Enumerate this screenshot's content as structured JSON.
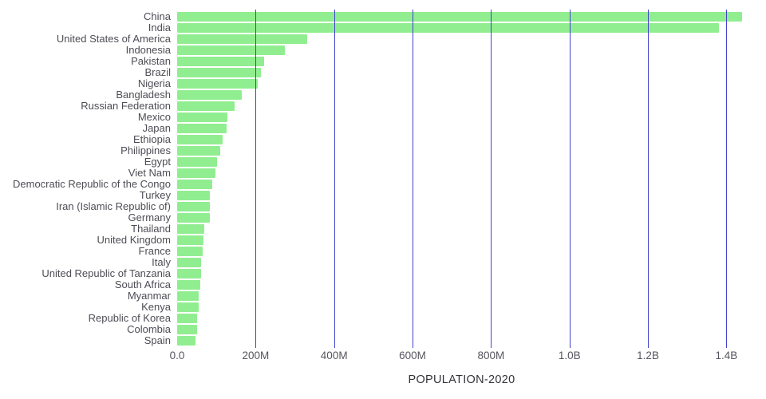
{
  "chart_data": {
    "type": "bar",
    "orientation": "horizontal",
    "title": "",
    "xlabel": "POPULATION-2020",
    "ylabel": "",
    "value_unit": "millions",
    "xlim": [
      0,
      1450
    ],
    "grid": true,
    "legend": "none",
    "categories": [
      "China",
      "India",
      "United States of America",
      "Indonesia",
      "Pakistan",
      "Brazil",
      "Nigeria",
      "Bangladesh",
      "Russian Federation",
      "Mexico",
      "Japan",
      "Ethiopia",
      "Philippines",
      "Egypt",
      "Viet Nam",
      "Democratic Republic of the Congo",
      "Turkey",
      "Iran (Islamic Republic of)",
      "Germany",
      "Thailand",
      "United Kingdom",
      "France",
      "Italy",
      "United Republic of Tanzania",
      "South Africa",
      "Myanmar",
      "Kenya",
      "Republic of Korea",
      "Colombia",
      "Spain"
    ],
    "values": [
      1439,
      1380,
      331,
      274,
      221,
      213,
      206,
      165,
      146,
      129,
      126,
      115,
      110,
      102,
      97,
      90,
      84,
      84,
      84,
      70,
      68,
      65,
      60,
      60,
      59,
      54,
      54,
      51,
      51,
      47
    ],
    "x_ticks": [
      {
        "value": 0,
        "label": "0.0"
      },
      {
        "value": 200,
        "label": "200M"
      },
      {
        "value": 400,
        "label": "400M"
      },
      {
        "value": 600,
        "label": "600M"
      },
      {
        "value": 800,
        "label": "800M"
      },
      {
        "value": 1000,
        "label": "1.0B"
      },
      {
        "value": 1200,
        "label": "1.2B"
      },
      {
        "value": 1400,
        "label": "1.4B"
      }
    ],
    "colors": {
      "bar": "#90ee90",
      "gridline": "#4343cf",
      "label_text": "#4d4d55",
      "tick_text": "#55555e",
      "axis_title_text": "#33333a"
    }
  }
}
